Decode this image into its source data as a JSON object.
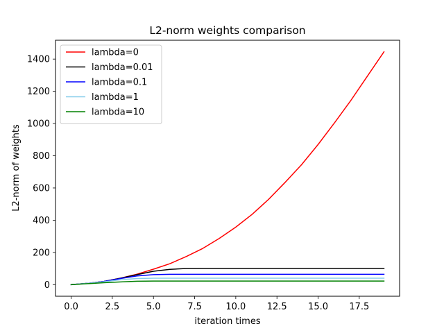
{
  "chart_data": {
    "type": "line",
    "title": "L2-norm weights comparison",
    "xlabel": "iteration times",
    "ylabel": "L2-norm of weights",
    "xlim": [
      -0.95,
      19.95
    ],
    "ylim": [
      -72,
      1517
    ],
    "x_ticks": [
      0.0,
      2.5,
      5.0,
      7.5,
      10.0,
      12.5,
      15.0,
      17.5
    ],
    "x_tick_labels": [
      "0.0",
      "2.5",
      "5.0",
      "7.5",
      "10.0",
      "12.5",
      "15.0",
      "17.5"
    ],
    "y_ticks": [
      0,
      200,
      400,
      600,
      800,
      1000,
      1200,
      1400
    ],
    "y_tick_labels": [
      "0",
      "200",
      "400",
      "600",
      "800",
      "1000",
      "1200",
      "1400"
    ],
    "grid": false,
    "legend_position": "top-left",
    "x": [
      0,
      1,
      2,
      3,
      4,
      5,
      6,
      7,
      8,
      9,
      10,
      11,
      12,
      13,
      14,
      15,
      16,
      17,
      18,
      19
    ],
    "series": [
      {
        "name": "lambda=0",
        "color": "#ff0000",
        "values": [
          0,
          8,
          20,
          40,
          65,
          96,
          130,
          175,
          225,
          287,
          357,
          437,
          530,
          635,
          745,
          870,
          1005,
          1145,
          1295,
          1445
        ]
      },
      {
        "name": "lambda=0.01",
        "color": "#000000",
        "values": [
          0,
          8,
          20,
          40,
          62,
          83,
          95,
          100,
          101,
          101,
          101,
          101,
          101,
          101,
          101,
          101,
          101,
          101,
          101,
          101
        ]
      },
      {
        "name": "lambda=0.1",
        "color": "#0000ff",
        "values": [
          0,
          8,
          20,
          38,
          54,
          62,
          64,
          64,
          64,
          64,
          64,
          64,
          64,
          64,
          64,
          64,
          64,
          64,
          64,
          64
        ]
      },
      {
        "name": "lambda=1",
        "color": "#87ceeb",
        "values": [
          0,
          8,
          18,
          30,
          38,
          40,
          40,
          40,
          40,
          40,
          40,
          40,
          40,
          40,
          40,
          40,
          40,
          40,
          40,
          40
        ]
      },
      {
        "name": "lambda=10",
        "color": "#008000",
        "values": [
          0,
          6,
          12,
          17,
          21,
          22,
          22,
          22,
          22,
          22,
          22,
          22,
          22,
          22,
          22,
          22,
          22,
          22,
          22,
          22
        ]
      }
    ]
  }
}
